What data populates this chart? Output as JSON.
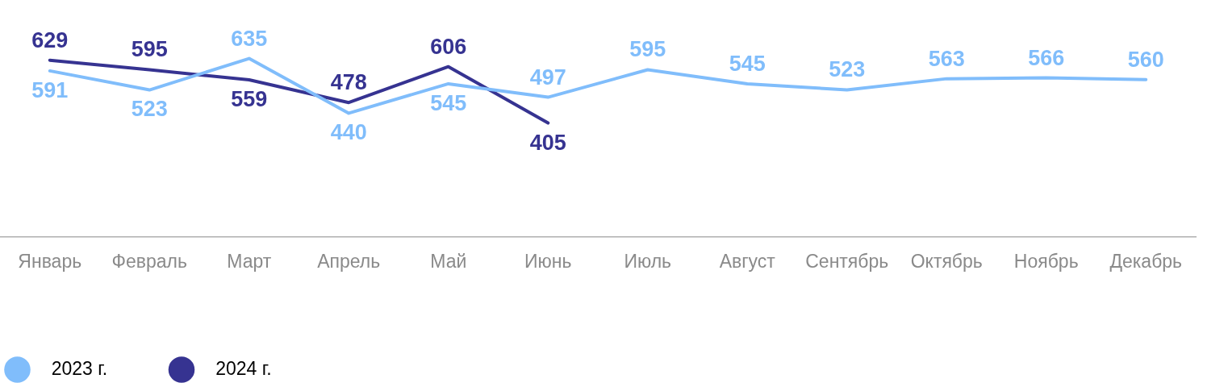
{
  "chart_data": {
    "type": "line",
    "categories": [
      "Январь",
      "Февраль",
      "Март",
      "Апрель",
      "Май",
      "Июнь",
      "Июль",
      "Август",
      "Сентябрь",
      "Октябрь",
      "Ноябрь",
      "Декабрь"
    ],
    "series": [
      {
        "name": "2023 г.",
        "color": "#80bdfb",
        "values": [
          591,
          523,
          635,
          440,
          545,
          497,
          595,
          545,
          523,
          563,
          566,
          560
        ]
      },
      {
        "name": "2024 г.",
        "color": "#363391",
        "values": [
          629,
          595,
          559,
          478,
          606,
          405,
          null,
          null,
          null,
          null,
          null,
          null
        ]
      }
    ],
    "tick_labels": "x",
    "grid": false,
    "legend": "bottom left",
    "marker": "none",
    "line_style": "solid",
    "data_labels": true
  }
}
